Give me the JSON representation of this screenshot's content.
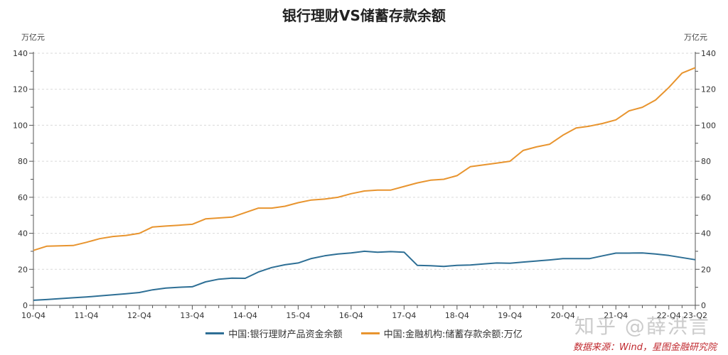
{
  "title": "银行理财VS储蓄存款余额",
  "unit_left": "万亿元",
  "unit_right": "万亿元",
  "legend": [
    {
      "label": "中国:银行理财产品资金余额",
      "color": "#2e6f95"
    },
    {
      "label": "中国:金融机构:储蓄存款余额:万亿",
      "color": "#e8942e"
    }
  ],
  "watermark": "知乎 @薛洪言",
  "source": "数据来源：Wind，星图金融研究院",
  "chart_data": {
    "type": "line",
    "title": "银行理财VS储蓄存款余额",
    "xlabel": "",
    "ylabel": "万亿元",
    "ylabel_right": "万亿元",
    "ylim": [
      0,
      140
    ],
    "yticks": [
      0,
      20,
      40,
      60,
      80,
      100,
      120,
      140
    ],
    "grid": true,
    "legend_position": "bottom",
    "x_tick_labels": [
      "10-Q4",
      "11-Q4",
      "12-Q4",
      "13-Q4",
      "14-Q4",
      "15-Q4",
      "16-Q4",
      "17-Q4",
      "18-Q4",
      "19-Q4",
      "20-Q4",
      "21-Q4",
      "22-Q4",
      "23-Q2"
    ],
    "x": [
      "10-Q4",
      "11-Q1",
      "11-Q2",
      "11-Q3",
      "11-Q4",
      "12-Q1",
      "12-Q2",
      "12-Q3",
      "12-Q4",
      "13-Q1",
      "13-Q2",
      "13-Q3",
      "13-Q4",
      "14-Q1",
      "14-Q2",
      "14-Q3",
      "14-Q4",
      "15-Q1",
      "15-Q2",
      "15-Q3",
      "15-Q4",
      "16-Q1",
      "16-Q2",
      "16-Q3",
      "16-Q4",
      "17-Q1",
      "17-Q2",
      "17-Q3",
      "17-Q4",
      "18-Q1",
      "18-Q2",
      "18-Q3",
      "18-Q4",
      "19-Q1",
      "19-Q2",
      "19-Q3",
      "19-Q4",
      "20-Q1",
      "20-Q2",
      "20-Q3",
      "20-Q4",
      "21-Q1",
      "21-Q2",
      "21-Q3",
      "21-Q4",
      "22-Q1",
      "22-Q2",
      "22-Q3",
      "22-Q4",
      "23-Q1",
      "23-Q2"
    ],
    "series": [
      {
        "name": "中国:银行理财产品资金余额",
        "color": "#2e6f95",
        "axis": "left",
        "values": [
          2.8,
          3.2,
          3.7,
          4.2,
          4.6,
          5.2,
          5.8,
          6.4,
          7.1,
          8.6,
          9.6,
          10.0,
          10.3,
          13.0,
          14.5,
          15.1,
          15.0,
          18.5,
          21.0,
          22.5,
          23.5,
          26.0,
          27.5,
          28.5,
          29.1,
          30.0,
          29.5,
          29.8,
          29.5,
          22.2,
          22.0,
          21.6,
          22.2,
          22.4,
          23.0,
          23.5,
          23.4,
          24.0,
          24.6,
          25.2,
          25.9,
          25.9,
          25.9,
          27.5,
          29.0,
          29.0,
          29.1,
          28.5,
          27.7,
          26.5,
          25.3
        ]
      },
      {
        "name": "中国:金融机构:储蓄存款余额:万亿",
        "color": "#e8942e",
        "axis": "right",
        "values": [
          30.5,
          32.8,
          33.0,
          33.2,
          35.0,
          37.0,
          38.2,
          38.8,
          40.0,
          43.5,
          44.0,
          44.5,
          45.0,
          48.0,
          48.5,
          49.0,
          51.5,
          54.0,
          54.0,
          55.0,
          57.0,
          58.5,
          59.0,
          60.0,
          62.0,
          63.5,
          64.0,
          64.0,
          66.0,
          68.0,
          69.5,
          70.0,
          72.0,
          77.0,
          78.0,
          79.0,
          80.0,
          86.0,
          88.0,
          89.5,
          94.5,
          98.5,
          99.5,
          101.0,
          103.0,
          108.0,
          110.0,
          114.0,
          121.0,
          129.0,
          132.0
        ]
      }
    ]
  }
}
